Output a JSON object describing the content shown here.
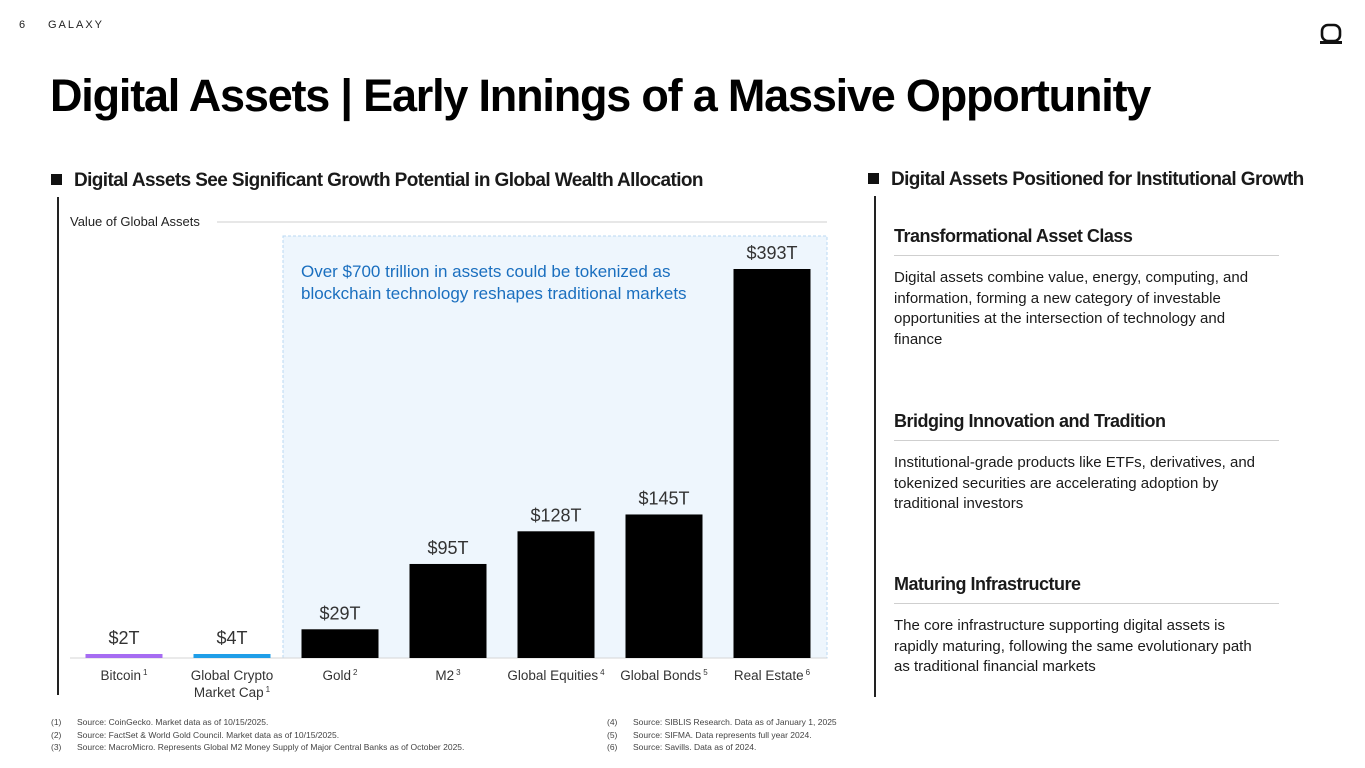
{
  "header": {
    "page_number": "6",
    "brand": "GALAXY",
    "logo_icon": "galaxy-logo-icon"
  },
  "title": "Digital Assets | Early Innings of a Massive Opportunity",
  "left_section": {
    "heading": "Digital Assets See Significant Growth Potential in Global Wealth Allocation"
  },
  "chart_data": {
    "type": "bar",
    "title": "Value of Global Assets",
    "categories": [
      "Bitcoin",
      "Global Crypto Market Cap",
      "Gold",
      "M2",
      "Global Equities",
      "Global Bonds",
      "Real Estate"
    ],
    "category_lines": [
      [
        "Bitcoin"
      ],
      [
        "Global Crypto",
        "Market Cap"
      ],
      [
        "Gold"
      ],
      [
        "M2"
      ],
      [
        "Global Equities"
      ],
      [
        "Global Bonds"
      ],
      [
        "Real Estate"
      ]
    ],
    "footnote_refs": [
      "1",
      "1",
      "2",
      "3",
      "4",
      "5",
      "6"
    ],
    "values": [
      2,
      4,
      29,
      95,
      128,
      145,
      393
    ],
    "value_labels": [
      "$2T",
      "$4T",
      "$29T",
      "$95T",
      "$128T",
      "$145T",
      "$393T"
    ],
    "unit": "$ trillions",
    "ylim": [
      0,
      393
    ],
    "colors": [
      "#a66cf2",
      "#1f9ee8",
      "#000000",
      "#000000",
      "#000000",
      "#000000",
      "#000000"
    ],
    "callout": "Over $700 trillion in assets could be tokenized as blockchain technology reshapes traditional markets",
    "callout_color": "#1a6fbf",
    "highlight_fill": "#eef6fd"
  },
  "right_section": {
    "heading": "Digital Assets Positioned for Institutional Growth",
    "items": [
      {
        "title": "Transformational Asset Class",
        "body": "Digital assets combine value, energy, computing, and information, forming a new category of investable opportunities at the intersection of technology and finance"
      },
      {
        "title": "Bridging Innovation and Tradition",
        "body": "Institutional-grade products like ETFs, derivatives, and tokenized securities are accelerating adoption by traditional investors"
      },
      {
        "title": "Maturing Infrastructure",
        "body": "The core infrastructure supporting digital assets is rapidly maturing, following the same evolutionary path as traditional financial markets"
      }
    ]
  },
  "footnotes": {
    "left": [
      {
        "num": "(1)",
        "text": "Source: CoinGecko. Market data as of 10/15/2025."
      },
      {
        "num": "(2)",
        "text": "Source: FactSet & World Gold Council. Market data as of 10/15/2025."
      },
      {
        "num": "(3)",
        "text": "Source: MacroMicro. Represents Global M2 Money Supply of Major Central Banks as of October 2025."
      }
    ],
    "right": [
      {
        "num": "(4)",
        "text": "Source: SIBLIS Research. Data as of January 1, 2025"
      },
      {
        "num": "(5)",
        "text": "Source: SIFMA. Data represents full year 2024."
      },
      {
        "num": "(6)",
        "text": "Source: Savills. Data as of 2024."
      }
    ]
  }
}
